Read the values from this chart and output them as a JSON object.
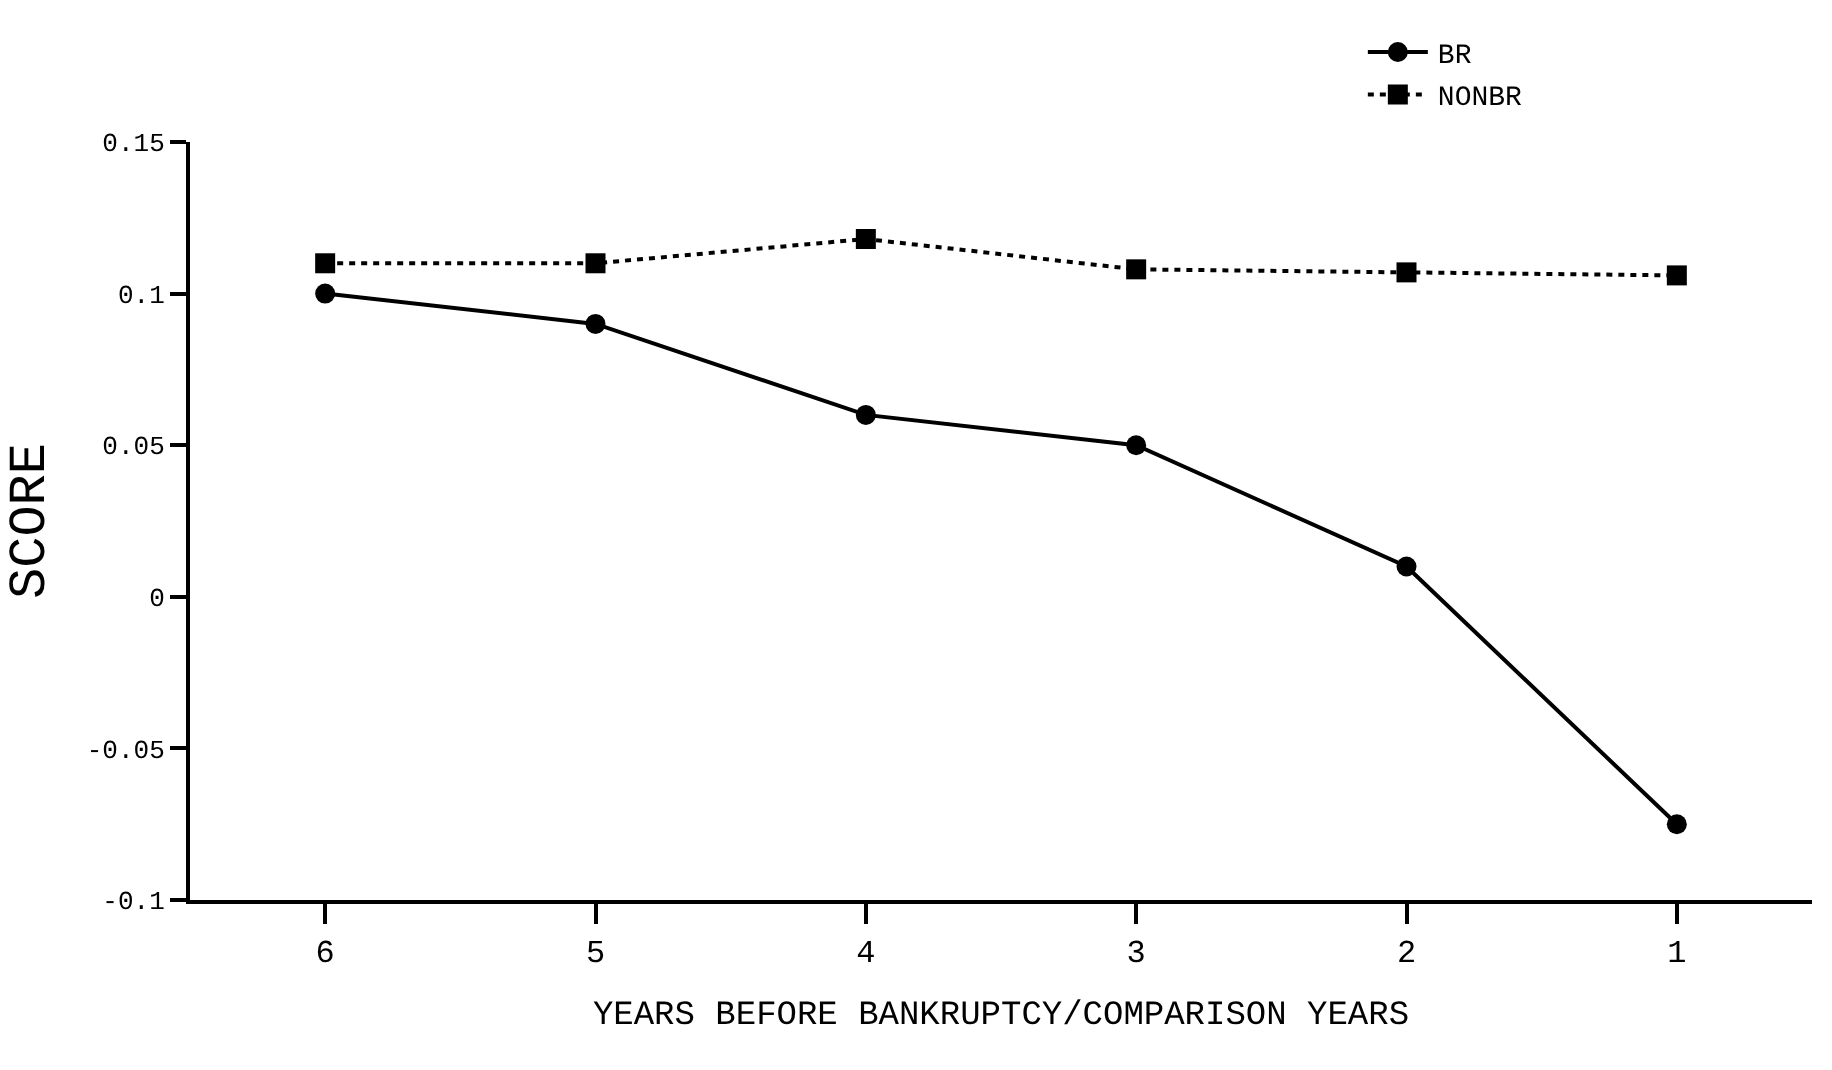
{
  "chart_data": {
    "type": "line",
    "xlabel": "YEARS BEFORE BANKRUPTCY/COMPARISON YEARS",
    "ylabel": "SCORE",
    "x": [
      6,
      5,
      4,
      3,
      2,
      1
    ],
    "series": [
      {
        "name": "BR",
        "color": "#000000",
        "marker": "circle",
        "line_style": "solid",
        "values": [
          0.1,
          0.09,
          0.06,
          0.05,
          0.01,
          -0.075
        ]
      },
      {
        "name": "NONBR",
        "color": "#000000",
        "marker": "square",
        "line_style": "dotted",
        "values": [
          0.11,
          0.11,
          0.118,
          0.108,
          0.107,
          0.106
        ]
      }
    ],
    "xlim": [
      6.5,
      0.5
    ],
    "xticks": [
      6,
      5,
      4,
      3,
      2,
      1
    ],
    "ylim": [
      -0.1,
      0.15
    ],
    "yticks": [
      -0.1,
      -0.05,
      0,
      0.05,
      0.1,
      0.15
    ],
    "grid": false,
    "legend": "top right"
  }
}
